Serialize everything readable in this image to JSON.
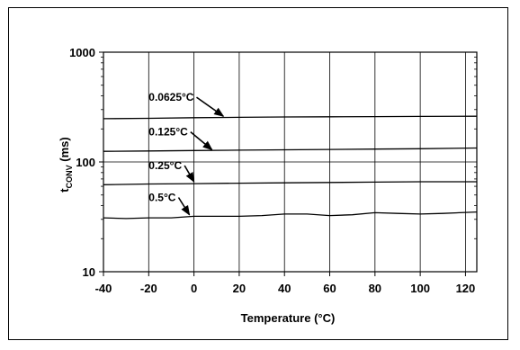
{
  "chart_data": {
    "type": "line",
    "title": "",
    "xlabel": "Temperature (°C)",
    "ylabel": {
      "main": "t",
      "sub": "CONV",
      "suffix": " (ms)"
    },
    "xlim": [
      -40,
      125
    ],
    "ylim": [
      10,
      1000
    ],
    "yscale": "log",
    "grid": true,
    "x_ticks": [
      -40,
      -20,
      0,
      20,
      40,
      60,
      80,
      100,
      120
    ],
    "x_tick_labels": [
      "-40",
      "-20",
      "0",
      "20",
      "40",
      "60",
      "80",
      "100",
      "120"
    ],
    "y_ticks": [
      10,
      100,
      1000
    ],
    "y_tick_labels": [
      "10",
      "100",
      "1000"
    ],
    "series": [
      {
        "name": "0.0625°C",
        "x": [
          -40,
          -20,
          0,
          20,
          40,
          60,
          80,
          100,
          125
        ],
        "y": [
          248,
          250,
          253,
          255,
          257,
          258,
          259,
          260,
          261
        ],
        "annotation": {
          "text": "0.0625°C",
          "text_x": -20,
          "text_y": 360,
          "arrow_x": 13,
          "arrow_y": 261
        }
      },
      {
        "name": "0.125°C",
        "x": [
          -40,
          -20,
          0,
          20,
          40,
          60,
          80,
          100,
          125
        ],
        "y": [
          125,
          126,
          127,
          128,
          129,
          130,
          131,
          132,
          134
        ],
        "annotation": {
          "text": "0.125°C",
          "text_x": -20,
          "text_y": 174,
          "arrow_x": 8,
          "arrow_y": 129
        }
      },
      {
        "name": "0.25°C",
        "x": [
          -40,
          -20,
          0,
          20,
          40,
          60,
          80,
          100,
          125
        ],
        "y": [
          62,
          63,
          63.5,
          64,
          64.5,
          65,
          65.5,
          66,
          66
        ],
        "annotation": {
          "text": "0.25°C",
          "text_x": -20,
          "text_y": 86,
          "arrow_x": 0,
          "arrow_y": 66
        }
      },
      {
        "name": "0.5°C",
        "x": [
          -40,
          -30,
          -20,
          -10,
          0,
          10,
          20,
          30,
          40,
          50,
          60,
          70,
          80,
          90,
          100,
          110,
          125
        ],
        "y": [
          31,
          30.5,
          31,
          31,
          32,
          32,
          32,
          32.5,
          33.5,
          33.5,
          32.5,
          33,
          34.5,
          34,
          33.5,
          34,
          35
        ],
        "annotation": {
          "text": "0.5°C",
          "text_x": -20,
          "text_y": 44,
          "arrow_x": -2,
          "arrow_y": 33
        }
      }
    ]
  }
}
